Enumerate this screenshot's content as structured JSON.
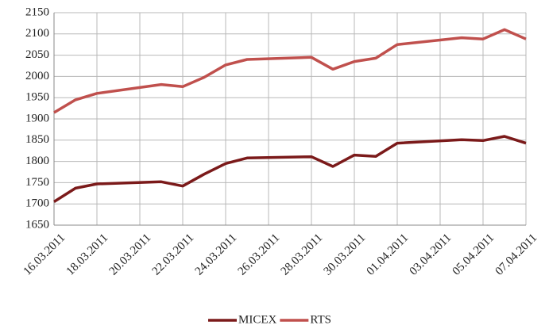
{
  "chart_data": {
    "type": "line",
    "x": [
      "16.03.2011",
      "17.03.2011",
      "18.03.2011",
      "21.03.2011",
      "22.03.2011",
      "23.03.2011",
      "24.03.2011",
      "25.03.2011",
      "28.03.2011",
      "29.03.2011",
      "30.03.2011",
      "31.03.2011",
      "01.04.2011",
      "04.04.2011",
      "05.04.2011",
      "06.04.2011",
      "07.04.2011"
    ],
    "series": [
      {
        "name": "MICEX",
        "color": "#7b1a1a",
        "values": [
          1705,
          1737,
          1747,
          1752,
          1742,
          1770,
          1795,
          1808,
          1811,
          1788,
          1815,
          1812,
          1843,
          1851,
          1849,
          1859,
          1843
        ]
      },
      {
        "name": "RTS",
        "color": "#c0504d",
        "values": [
          1915,
          1945,
          1960,
          1981,
          1976,
          1998,
          2027,
          2040,
          2045,
          2017,
          2035,
          2043,
          2075,
          2091,
          2088,
          2110,
          2088
        ]
      }
    ],
    "xlim": [
      "16.03.2011",
      "07.04.2011"
    ],
    "xticks": [
      "16.03.2011",
      "18.03.2011",
      "20.03.2011",
      "22.03.2011",
      "24.03.2011",
      "26.03.2011",
      "28.03.2011",
      "30.03.2011",
      "01.04.2011",
      "03.04.2011",
      "05.04.2011",
      "07.04.2011"
    ],
    "ylim": [
      1650,
      2150
    ],
    "yticks": [
      1650,
      1700,
      1750,
      1800,
      1850,
      1900,
      1950,
      2000,
      2050,
      2100,
      2150
    ],
    "grid": true,
    "legend": "bottom"
  }
}
